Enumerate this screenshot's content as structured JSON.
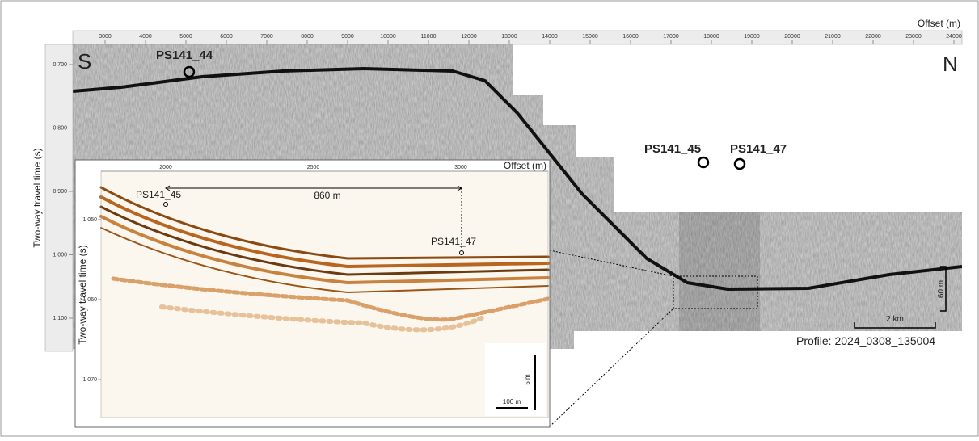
{
  "main": {
    "axis_title_x": "Offset (m)",
    "xticks": [
      3000,
      4000,
      5000,
      6000,
      7000,
      8000,
      9000,
      10000,
      11000,
      12000,
      13000,
      14000,
      15000,
      16000,
      17000,
      18000,
      19000,
      20000,
      21000,
      22000,
      23000,
      24000
    ],
    "axis_title_y": "Two-way travel time (s)",
    "yticks": [
      "0.700",
      "0.800",
      "0.900",
      "1.000",
      "1.100"
    ],
    "left_label": "S",
    "right_label": "N",
    "stations": [
      "PS141_44",
      "PS141_45",
      "PS141_47"
    ],
    "vertical_scale": "60 m",
    "horizontal_scale": "2 km",
    "profile": "Profile: 2024_0308_135004"
  },
  "inset": {
    "axis_title_x": "Offset (m)",
    "xticks": [
      2000,
      2500,
      3000
    ],
    "axis_title_y": "Two-way travel time (s)",
    "yticks": [
      "1.050",
      "1.060",
      "1.070"
    ],
    "stations": [
      "PS141_45",
      "PS141_47"
    ],
    "distance": "860 m",
    "vertical_scale": "5 m",
    "horizontal_scale": "100 m"
  }
}
